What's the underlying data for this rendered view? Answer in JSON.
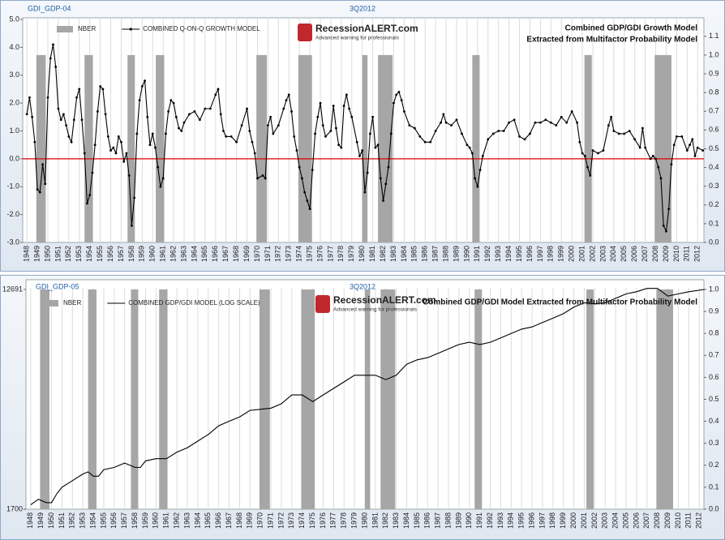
{
  "chart_data": [
    {
      "type": "line",
      "id_label": "GDI_GDP-04",
      "title": "3Q2012",
      "annotation": [
        "Combined GDP/GDI Growth Model",
        "Extracted from Multifactor Probability Model"
      ],
      "logo": {
        "name": "RecessionALERT.com",
        "tagline": "Advanced warning for professionals"
      },
      "xlim": [
        1947.6,
        2012.6
      ],
      "xticks": [
        1948,
        1949,
        1950,
        1951,
        1952,
        1953,
        1954,
        1955,
        1956,
        1957,
        1958,
        1959,
        1960,
        1961,
        1962,
        1963,
        1964,
        1965,
        1966,
        1967,
        1968,
        1969,
        1970,
        1971,
        1972,
        1973,
        1974,
        1975,
        1976,
        1977,
        1978,
        1979,
        1980,
        1981,
        1982,
        1983,
        1984,
        1985,
        1986,
        1987,
        1988,
        1989,
        1990,
        1991,
        1992,
        1993,
        1994,
        1995,
        1996,
        1997,
        1998,
        1999,
        2000,
        2001,
        2002,
        2003,
        2004,
        2005,
        2006,
        2007,
        2008,
        2009,
        2010,
        2011,
        2012
      ],
      "ylim": [
        -3,
        5
      ],
      "yticks": [
        {
          "value": 5,
          "label": "5.0"
        },
        {
          "value": 4,
          "label": "4.0"
        },
        {
          "value": 3,
          "label": "3.0"
        },
        {
          "value": 2,
          "label": "2.0"
        },
        {
          "value": 1,
          "label": "1.0"
        },
        {
          "value": 0,
          "label": "0.0"
        },
        {
          "value": -1,
          "label": "-1.0"
        },
        {
          "value": -2,
          "label": "-2.0"
        },
        {
          "value": -3,
          "label": "-3.0"
        }
      ],
      "y2lim": [
        0,
        1.19
      ],
      "y2ticks": [
        {
          "value": 1.1,
          "label": "1.1"
        },
        {
          "value": 1,
          "label": "1.0"
        },
        {
          "value": 0.9,
          "label": "0.9"
        },
        {
          "value": 0.8,
          "label": "0.8"
        },
        {
          "value": 0.7,
          "label": "0.7"
        },
        {
          "value": 0.6,
          "label": "0.6"
        },
        {
          "value": 0.5,
          "label": "0.5"
        },
        {
          "value": 0.4,
          "label": "0.4"
        },
        {
          "value": 0.3,
          "label": "0.3"
        },
        {
          "value": 0.2,
          "label": "0.2"
        },
        {
          "value": 0.1,
          "label": "0.1"
        },
        {
          "value": 0,
          "label": "0.0"
        }
      ],
      "grid": "x",
      "reference_line": {
        "value": 0,
        "color": "#e00000"
      },
      "series": [
        {
          "name": "NBER",
          "color": "#a6a6a6",
          "axis": "y2",
          "x_start": [
            1948.9,
            1953.5,
            1957.6,
            1960.3,
            1969.9,
            1973.9,
            1980.0,
            1981.5,
            1990.5,
            2001.2,
            2007.9
          ],
          "x_end": [
            1949.8,
            1954.3,
            1958.3,
            1961.1,
            1970.9,
            1975.2,
            1980.5,
            1982.9,
            1991.2,
            2001.9,
            2009.5
          ],
          "values": [
            1,
            1,
            1,
            1,
            1,
            1,
            1,
            1,
            1,
            1,
            1
          ]
        },
        {
          "name": "COMBINED Q-ON-Q GROWTH MODEL",
          "color": "#000000",
          "markers": true,
          "x": [
            1948,
            1948.25,
            1948.5,
            1948.75,
            1949,
            1949.25,
            1949.5,
            1949.75,
            1950,
            1950.25,
            1950.5,
            1950.75,
            1951,
            1951.25,
            1951.5,
            1951.75,
            1952,
            1952.25,
            1952.5,
            1952.75,
            1953,
            1953.25,
            1953.5,
            1953.75,
            1954,
            1954.25,
            1954.5,
            1954.75,
            1955,
            1955.25,
            1955.5,
            1955.75,
            1956,
            1956.25,
            1956.5,
            1956.75,
            1957,
            1957.25,
            1957.5,
            1957.75,
            1958,
            1958.25,
            1958.5,
            1958.75,
            1959,
            1959.25,
            1959.5,
            1959.75,
            1960,
            1960.25,
            1960.5,
            1960.75,
            1961,
            1961.25,
            1961.5,
            1961.75,
            1962,
            1962.25,
            1962.5,
            1962.75,
            1963,
            1963.5,
            1964,
            1964.5,
            1965,
            1965.5,
            1966,
            1966.25,
            1966.5,
            1966.75,
            1967,
            1967.5,
            1968,
            1968.5,
            1969,
            1969.25,
            1969.5,
            1969.75,
            1970,
            1970.5,
            1970.75,
            1971,
            1971.25,
            1971.5,
            1972,
            1972.5,
            1972.75,
            1973,
            1973.25,
            1973.5,
            1973.75,
            1974,
            1974.25,
            1974.5,
            1974.75,
            1975,
            1975.25,
            1975.5,
            1975.75,
            1976,
            1976.25,
            1976.5,
            1977,
            1977.25,
            1977.5,
            1977.75,
            1978,
            1978.25,
            1978.5,
            1978.75,
            1979,
            1979.5,
            1979.75,
            1980,
            1980.25,
            1980.5,
            1980.75,
            1981,
            1981.25,
            1981.5,
            1981.75,
            1982,
            1982.25,
            1982.5,
            1982.75,
            1983,
            1983.25,
            1983.5,
            1983.75,
            1984,
            1984.5,
            1985,
            1985.5,
            1986,
            1986.5,
            1987,
            1987.5,
            1987.75,
            1988,
            1988.5,
            1989,
            1989.5,
            1990,
            1990.25,
            1990.5,
            1990.75,
            1991,
            1991.25,
            1991.5,
            1992,
            1992.5,
            1993,
            1993.5,
            1994,
            1994.5,
            1995,
            1995.5,
            1996,
            1996.5,
            1997,
            1997.5,
            1998,
            1998.5,
            1999,
            1999.5,
            2000,
            2000.5,
            2000.75,
            2001,
            2001.25,
            2001.5,
            2001.75,
            2002,
            2002.5,
            2003,
            2003.5,
            2003.75,
            2004,
            2004.5,
            2005,
            2005.5,
            2006,
            2006.5,
            2006.75,
            2007,
            2007.5,
            2007.75,
            2008,
            2008.25,
            2008.5,
            2008.75,
            2009,
            2009.25,
            2009.5,
            2009.75,
            2010,
            2010.5,
            2011,
            2011.25,
            2011.5,
            2011.75,
            2012,
            2012.5
          ],
          "values": [
            1.6,
            2.2,
            1.5,
            0.6,
            -1.1,
            -1.2,
            -0.2,
            -0.9,
            2.2,
            3.6,
            4.1,
            3.3,
            1.8,
            1.4,
            1.6,
            1.2,
            0.8,
            0.6,
            1.4,
            2.2,
            2.5,
            1.4,
            0.2,
            -1.6,
            -1.3,
            -0.5,
            0.5,
            1.7,
            2.6,
            2.5,
            1.6,
            0.8,
            0.3,
            0.4,
            0.2,
            0.8,
            0.6,
            -0.1,
            0.2,
            -0.6,
            -2.4,
            -1.4,
            0.9,
            2.1,
            2.6,
            2.8,
            1.5,
            0.5,
            0.9,
            0.4,
            -0.3,
            -1.0,
            -0.7,
            0.9,
            1.7,
            2.1,
            2.0,
            1.5,
            1.1,
            1.0,
            1.3,
            1.6,
            1.7,
            1.4,
            1.8,
            1.8,
            2.3,
            2.5,
            1.6,
            1.0,
            0.8,
            0.8,
            0.6,
            1.2,
            1.8,
            1.0,
            0.6,
            0.2,
            -0.7,
            -0.6,
            -0.7,
            1.2,
            1.5,
            0.9,
            1.2,
            1.8,
            2.1,
            2.3,
            1.7,
            0.8,
            0.3,
            -0.3,
            -0.7,
            -1.2,
            -1.5,
            -1.8,
            -0.4,
            0.9,
            1.5,
            2.0,
            1.2,
            0.8,
            1.0,
            1.9,
            1.1,
            0.5,
            0.4,
            1.9,
            2.3,
            1.8,
            1.5,
            0.6,
            0.1,
            0.3,
            -1.2,
            -0.5,
            0.9,
            1.5,
            0.4,
            0.5,
            -0.7,
            -1.5,
            -0.9,
            -0.3,
            0.9,
            2.0,
            2.3,
            2.4,
            2.1,
            1.7,
            1.2,
            1.1,
            0.8,
            0.6,
            0.6,
            1.0,
            1.3,
            1.6,
            1.3,
            1.2,
            1.4,
            0.9,
            0.5,
            0.4,
            0.2,
            -0.7,
            -1.0,
            -0.4,
            0.1,
            0.7,
            0.9,
            1.0,
            1.0,
            1.3,
            1.4,
            0.8,
            0.7,
            0.9,
            1.3,
            1.3,
            1.4,
            1.3,
            1.2,
            1.5,
            1.3,
            1.7,
            1.3,
            0.6,
            0.2,
            0.1,
            -0.3,
            -0.6,
            0.3,
            0.2,
            0.3,
            1.2,
            1.5,
            1.0,
            0.9,
            0.9,
            1.0,
            0.7,
            0.4,
            1.1,
            0.4,
            0.0,
            0.1,
            0.0,
            -0.3,
            -0.7,
            -2.4,
            -2.6,
            -1.8,
            -0.2,
            0.5,
            0.8,
            0.8,
            0.3,
            0.5,
            0.7,
            0.1,
            0.4,
            0.3
          ]
        }
      ]
    },
    {
      "type": "line",
      "id_label": "GDI_GDP-05",
      "title": "3Q2012",
      "annotation": [
        "Combined GDP/GDI Model Extracted from Multifactor Probability Model"
      ],
      "logo": {
        "name": "RecessionALERT.com",
        "tagline": "Advanced warning for professionals"
      },
      "xlim": [
        1947.55,
        2012.45
      ],
      "xticks": [
        1948,
        1949,
        1950,
        1951,
        1952,
        1953,
        1954,
        1955,
        1956,
        1957,
        1958,
        1959,
        1960,
        1961,
        1962,
        1963,
        1964,
        1965,
        1966,
        1967,
        1968,
        1969,
        1970,
        1971,
        1972,
        1973,
        1974,
        1975,
        1976,
        1977,
        1978,
        1979,
        1980,
        1981,
        1982,
        1983,
        1984,
        1985,
        1986,
        1987,
        1988,
        1989,
        1990,
        1991,
        1992,
        1993,
        1994,
        1995,
        1996,
        1997,
        1998,
        1999,
        2000,
        2001,
        2002,
        2003,
        2004,
        2005,
        2006,
        2007,
        2008,
        2009,
        2010,
        2011,
        2012
      ],
      "y_scale": "log",
      "ylim": [
        1700,
        12691
      ],
      "yticks": [
        12691,
        1700
      ],
      "y2lim": [
        0,
        1
      ],
      "y2ticks": [
        {
          "value": 1,
          "label": "1.0"
        },
        {
          "value": 0.9,
          "label": "0.9"
        },
        {
          "value": 0.8,
          "label": "0.8"
        },
        {
          "value": 0.7,
          "label": "0.7"
        },
        {
          "value": 0.6,
          "label": "0.6"
        },
        {
          "value": 0.5,
          "label": "0.5"
        },
        {
          "value": 0.4,
          "label": "0.4"
        },
        {
          "value": 0.3,
          "label": "0.3"
        },
        {
          "value": 0.2,
          "label": "0.2"
        },
        {
          "value": 0.1,
          "label": "0.1"
        },
        {
          "value": 0,
          "label": "0.0"
        }
      ],
      "grid": "x",
      "series": [
        {
          "name": "NBER",
          "color": "#a6a6a6",
          "axis": "y2",
          "x_start": [
            1948.9,
            1953.5,
            1957.6,
            1960.3,
            1969.9,
            1973.9,
            1980.0,
            1981.5,
            1990.5,
            2001.2,
            2007.9
          ],
          "x_end": [
            1949.8,
            1954.3,
            1958.3,
            1961.1,
            1970.9,
            1975.2,
            1980.5,
            1982.9,
            1991.2,
            2001.9,
            2009.5
          ],
          "values": [
            1,
            1,
            1,
            1,
            1,
            1,
            1,
            1,
            1,
            1,
            1
          ]
        },
        {
          "name": "COMBINED GDP/GDI MODEL (LOG SCALE)",
          "color": "#000000",
          "markers": false,
          "x": [
            1948,
            1948.75,
            1949.5,
            1950,
            1950.5,
            1951,
            1952,
            1953,
            1953.5,
            1954,
            1954.5,
            1955,
            1956,
            1957,
            1958,
            1958.5,
            1959,
            1960,
            1961,
            1962,
            1963,
            1964,
            1965,
            1966,
            1967,
            1968,
            1969,
            1970,
            1971,
            1972,
            1973,
            1974,
            1975,
            1976,
            1977,
            1978,
            1979,
            1980,
            1981,
            1982,
            1983,
            1984,
            1985,
            1986,
            1987,
            1988,
            1989,
            1990,
            1991,
            1992,
            1993,
            1994,
            1995,
            1996,
            1997,
            1998,
            1999,
            2000,
            2001,
            2002,
            2003,
            2004,
            2005,
            2006,
            2007,
            2008,
            2009,
            2010,
            2011,
            2012.5
          ],
          "values": [
            1770,
            1862,
            1805,
            1805,
            1957,
            2079,
            2207,
            2346,
            2392,
            2299,
            2299,
            2441,
            2491,
            2592,
            2491,
            2491,
            2645,
            2698,
            2698,
            2866,
            2984,
            3170,
            3366,
            3648,
            3801,
            3954,
            4199,
            4241,
            4285,
            4460,
            4835,
            4835,
            4551,
            4835,
            5134,
            5450,
            5788,
            5788,
            5788,
            5564,
            5788,
            6406,
            6667,
            6803,
            7081,
            7373,
            7672,
            7829,
            7672,
            7829,
            8152,
            8486,
            8832,
            9010,
            9379,
            9761,
            10163,
            10798,
            11240,
            11128,
            11240,
            11705,
            12182,
            12430,
            12810,
            12810,
            11943,
            12182,
            12430,
            12691
          ]
        }
      ]
    }
  ]
}
